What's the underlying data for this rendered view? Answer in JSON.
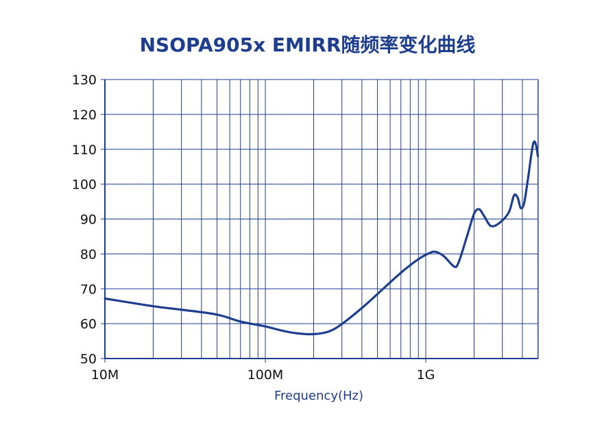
{
  "chart_data": {
    "type": "line",
    "title": "NSOPA905x EMIRR随频率变化曲线",
    "xlabel": "Frequency(Hz)",
    "ylabel": "",
    "x_scale": "log",
    "xlim": [
      10000000,
      5000000000
    ],
    "ylim": [
      50,
      130
    ],
    "grid": true,
    "x_ticks": [
      10000000,
      100000000,
      1000000000
    ],
    "x_tick_labels": [
      "10M",
      "100M",
      "1G"
    ],
    "y_ticks": [
      50,
      60,
      70,
      80,
      90,
      100,
      110,
      120,
      130
    ],
    "y_tick_labels": [
      "50",
      "60",
      "70",
      "80",
      "90",
      "100",
      "110",
      "120",
      "130"
    ],
    "series": [
      {
        "name": "",
        "color": "#1d3d8f",
        "points": [
          [
            10000000,
            67.2
          ],
          [
            20000000,
            65.0
          ],
          [
            30000000,
            64.0
          ],
          [
            50000000,
            62.6
          ],
          [
            70000000,
            60.6
          ],
          [
            100000000,
            59.2
          ],
          [
            130000000,
            57.9
          ],
          [
            160000000,
            57.2
          ],
          [
            200000000,
            57.0
          ],
          [
            250000000,
            57.8
          ],
          [
            300000000,
            59.9
          ],
          [
            400000000,
            64.5
          ],
          [
            500000000,
            68.5
          ],
          [
            700000000,
            74.6
          ],
          [
            900000000,
            78.5
          ],
          [
            1050000000,
            80.2
          ],
          [
            1150000000,
            80.6
          ],
          [
            1300000000,
            79.3
          ],
          [
            1500000000,
            76.4
          ],
          [
            1600000000,
            77.5
          ],
          [
            1800000000,
            84.8
          ],
          [
            2000000000,
            91.5
          ],
          [
            2150000000,
            92.8
          ],
          [
            2300000000,
            91.0
          ],
          [
            2550000000,
            88.0
          ],
          [
            2900000000,
            89.0
          ],
          [
            3300000000,
            92.0
          ],
          [
            3550000000,
            96.8
          ],
          [
            3750000000,
            96.0
          ],
          [
            3900000000,
            93.2
          ],
          [
            4100000000,
            94.5
          ],
          [
            4350000000,
            102.0
          ],
          [
            4550000000,
            108.5
          ],
          [
            4700000000,
            112.0
          ],
          [
            4850000000,
            111.5
          ],
          [
            5000000000,
            108.0
          ]
        ]
      }
    ]
  }
}
